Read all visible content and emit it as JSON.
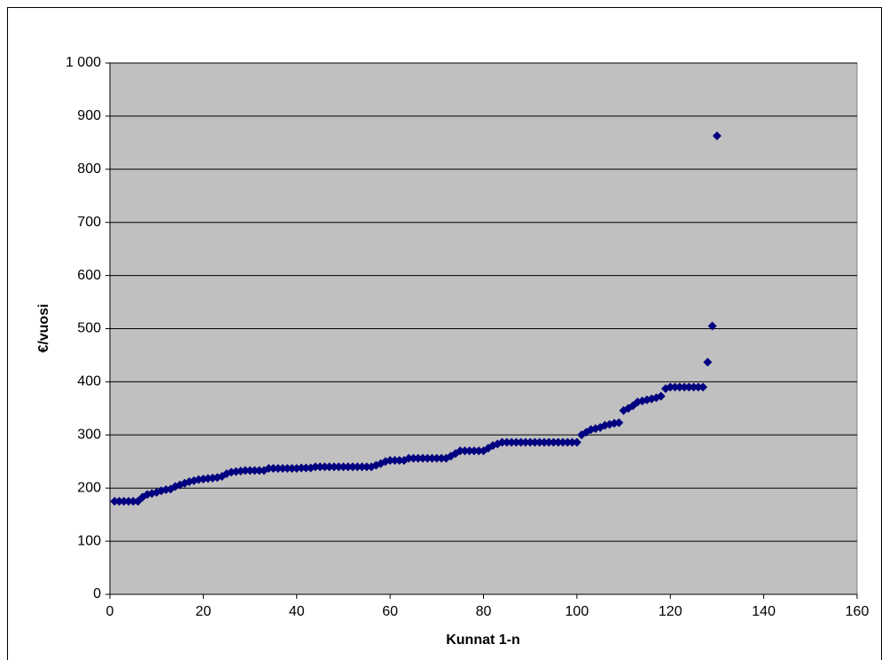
{
  "chart_data": {
    "type": "scatter",
    "x_label": "Kunnat 1-n",
    "y_label": "€/vuosi",
    "x": [
      1,
      2,
      3,
      4,
      5,
      6,
      7,
      8,
      9,
      10,
      11,
      12,
      13,
      14,
      15,
      16,
      17,
      18,
      19,
      20,
      21,
      22,
      23,
      24,
      25,
      26,
      27,
      28,
      29,
      30,
      31,
      32,
      33,
      34,
      35,
      36,
      37,
      38,
      39,
      40,
      41,
      42,
      43,
      44,
      45,
      46,
      47,
      48,
      49,
      50,
      51,
      52,
      53,
      54,
      55,
      56,
      57,
      58,
      59,
      60,
      61,
      62,
      63,
      64,
      65,
      66,
      67,
      68,
      69,
      70,
      71,
      72,
      73,
      74,
      75,
      76,
      77,
      78,
      79,
      80,
      81,
      82,
      83,
      84,
      85,
      86,
      87,
      88,
      89,
      90,
      91,
      92,
      93,
      94,
      95,
      96,
      97,
      98,
      99,
      100,
      101,
      102,
      103,
      104,
      105,
      106,
      107,
      108,
      109,
      110,
      111,
      112,
      113,
      114,
      115,
      116,
      117,
      118,
      119,
      120,
      121,
      122,
      123,
      124,
      125,
      126,
      127,
      128,
      129,
      130
    ],
    "values": [
      175,
      175,
      175,
      175,
      175,
      175,
      183,
      188,
      190,
      192,
      195,
      197,
      198,
      203,
      206,
      209,
      212,
      214,
      216,
      217,
      218,
      219,
      220,
      222,
      227,
      230,
      231,
      232,
      233,
      233,
      233,
      233,
      233,
      237,
      237,
      237,
      237,
      237,
      237,
      237,
      238,
      238,
      238,
      240,
      240,
      240,
      240,
      240,
      240,
      240,
      240,
      240,
      240,
      240,
      240,
      240,
      243,
      246,
      250,
      252,
      252,
      252,
      252,
      256,
      256,
      256,
      256,
      256,
      256,
      256,
      256,
      256,
      260,
      265,
      270,
      270,
      270,
      270,
      270,
      270,
      275,
      280,
      283,
      286,
      286,
      286,
      286,
      286,
      286,
      286,
      286,
      286,
      286,
      286,
      286,
      286,
      286,
      286,
      286,
      286,
      300,
      305,
      310,
      312,
      314,
      318,
      320,
      322,
      323,
      346,
      350,
      355,
      362,
      364,
      366,
      368,
      370,
      373,
      387,
      390,
      390,
      390,
      390,
      390,
      390,
      390,
      390,
      437,
      505,
      863
    ],
    "color": "#000080",
    "xlim": [
      0,
      160
    ],
    "xticks": [
      0,
      20,
      40,
      60,
      80,
      100,
      120,
      140,
      160
    ],
    "ylim": [
      0,
      1000
    ],
    "yticks": [
      0,
      100,
      200,
      300,
      400,
      500,
      600,
      700,
      800,
      900,
      {
        "value": 1000,
        "label": "1 000"
      }
    ],
    "grid": true
  }
}
